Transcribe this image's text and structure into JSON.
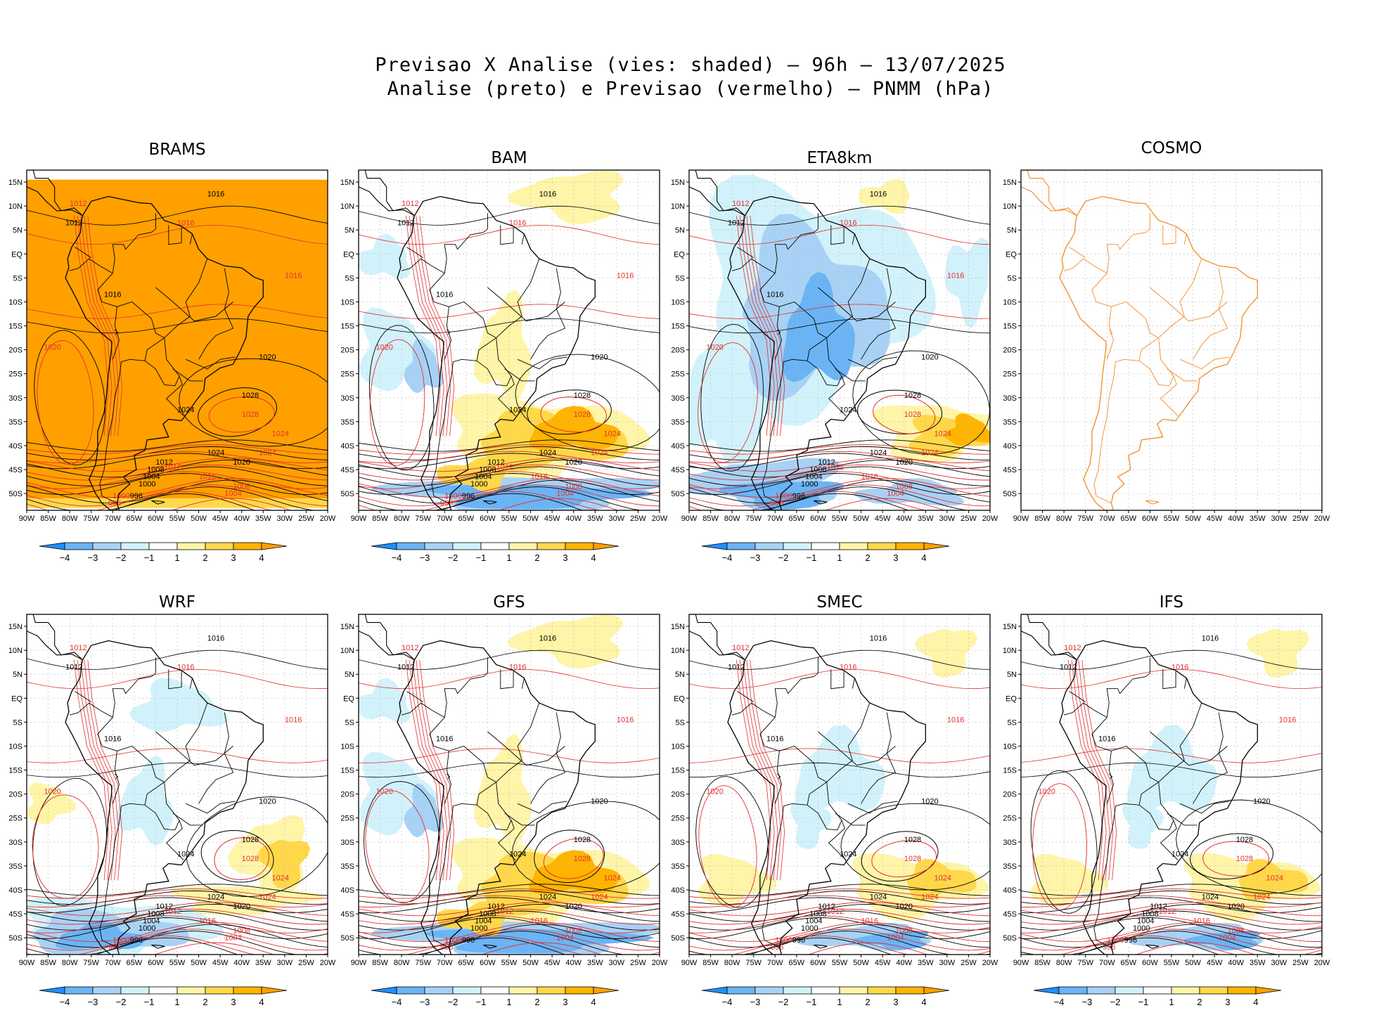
{
  "title": {
    "line1": "Previsao X Analise (vies: shaded) — 96h — 13/07/2025",
    "line2": "Analise (preto) e Previsao (vermelho) — PNMM (hPa)"
  },
  "panels": [
    {
      "name": "BRAMS",
      "shading": "orange-full",
      "has_colorbar": true
    },
    {
      "name": "BAM",
      "shading": "mixed",
      "has_colorbar": true
    },
    {
      "name": "ETA8km",
      "shading": "blue-heavy",
      "has_colorbar": true
    },
    {
      "name": "COSMO",
      "shading": "none",
      "has_colorbar": false
    },
    {
      "name": "WRF",
      "shading": "mixed-blue",
      "has_colorbar": true
    },
    {
      "name": "GFS",
      "shading": "mixed",
      "has_colorbar": true
    },
    {
      "name": "SMEC",
      "shading": "mixed-light",
      "has_colorbar": true
    },
    {
      "name": "IFS",
      "shading": "mixed-light",
      "has_colorbar": true
    }
  ],
  "axes": {
    "y_ticks": [
      "15N",
      "10N",
      "5N",
      "EQ",
      "5S",
      "10S",
      "15S",
      "20S",
      "25S",
      "30S",
      "35S",
      "40S",
      "45S",
      "50S"
    ],
    "x_ticks": [
      "90W",
      "85W",
      "80W",
      "75W",
      "70W",
      "65W",
      "60W",
      "55W",
      "50W",
      "45W",
      "40W",
      "35W",
      "30W",
      "25W",
      "20W"
    ]
  },
  "colorbar": {
    "labels": [
      "−4",
      "−3",
      "−2",
      "−1",
      "1",
      "2",
      "3",
      "4"
    ],
    "colors": [
      "#1e90ff",
      "#6ab4f5",
      "#a8d2f5",
      "#d2f2fb",
      "#ffffff",
      "#fff5a8",
      "#ffd84a",
      "#ffb400",
      "#ffa000"
    ]
  },
  "colors": {
    "analysis_contour": "#000000",
    "forecast_contour": "#e23030",
    "cosmo_coast": "#f08c28",
    "bias_positive": "#ffa000",
    "bias_negative": "#5aaaf0"
  },
  "iso_labels": {
    "analysis": [
      "1016",
      "1012",
      "1016",
      "1020",
      "1024",
      "1028",
      "1024",
      "1020",
      "1012",
      "1008",
      "1004",
      "1000",
      "996"
    ],
    "forecast": [
      "1012",
      "1016",
      "1016",
      "1020",
      "1024",
      "1028",
      "1024",
      "1016",
      "1012",
      "1008",
      "1004",
      "1000",
      "996"
    ]
  }
}
